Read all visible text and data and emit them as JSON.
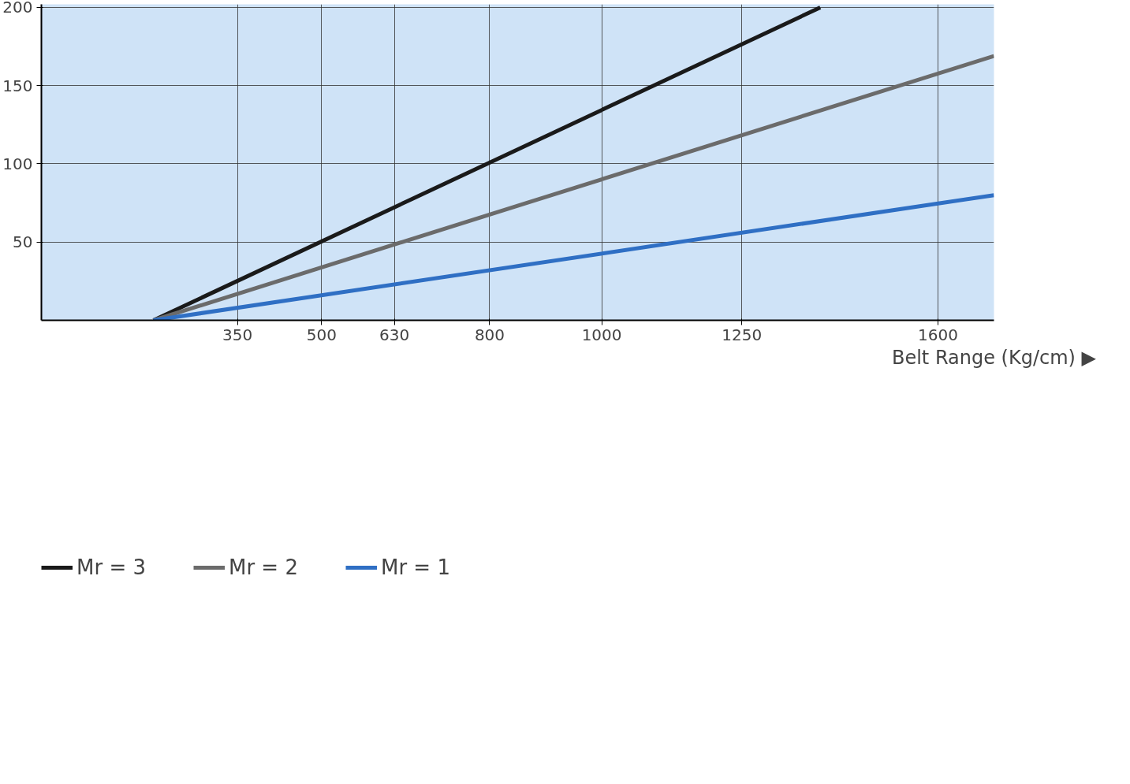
{
  "chart_data": {
    "type": "line",
    "xlabel": "Belt Range (Kg/cm) ▶",
    "xlim": [
      0,
      1700
    ],
    "xticks": [
      350,
      500,
      630,
      800,
      1000,
      1250,
      1600
    ],
    "ylim": [
      0,
      202
    ],
    "yticks": [
      50,
      100,
      150,
      200
    ],
    "grid": true,
    "legend": "bottom left",
    "line_style": "solid",
    "marker": "none",
    "series": [
      {
        "name": "Mr = 3",
        "color": "#1a1a1a",
        "x": [
          200,
          1390
        ],
        "values": [
          0,
          200
        ]
      },
      {
        "name": "Mr = 2",
        "color": "#6b6b6b",
        "x": [
          200,
          1700
        ],
        "values": [
          0,
          169
        ]
      },
      {
        "name": "Mr = 1",
        "color": "#2f6fc4",
        "x": [
          200,
          1700
        ],
        "values": [
          0,
          80
        ]
      }
    ]
  }
}
